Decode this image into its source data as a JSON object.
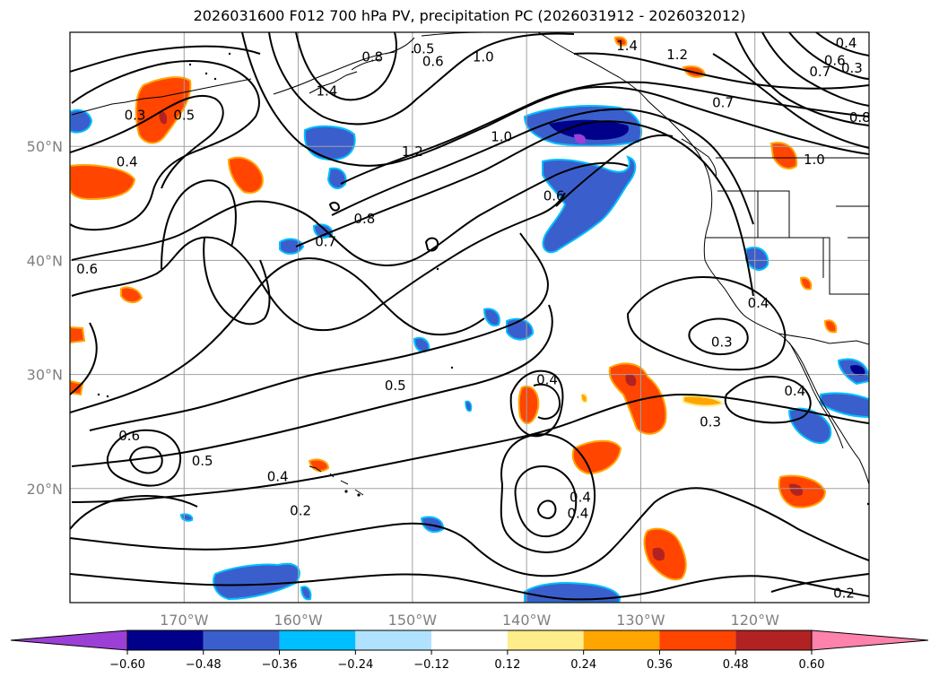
{
  "title": "2026031600 F012 700 hPa PV, precipitation PC (2026031912 - 2026032012)",
  "map": {
    "lon_range": [
      -180,
      -110
    ],
    "lat_range": [
      10,
      60
    ],
    "lat_ticks": [
      {
        "value": 50,
        "label": "50°N"
      },
      {
        "value": 40,
        "label": "40°N"
      },
      {
        "value": 30,
        "label": "30°N"
      },
      {
        "value": 20,
        "label": "20°N"
      }
    ],
    "lon_ticks": [
      {
        "value": -170,
        "label": "170°W"
      },
      {
        "value": -160,
        "label": "160°W"
      },
      {
        "value": -150,
        "label": "150°W"
      },
      {
        "value": -140,
        "label": "140°W"
      },
      {
        "value": -130,
        "label": "130°W"
      },
      {
        "value": -120,
        "label": "120°W"
      }
    ],
    "grid": true,
    "grid_color": "#a0a0a0",
    "contour_color": "#000000",
    "coast_color": "#000000"
  },
  "colorbar": {
    "colors": [
      "#9c3fd6",
      "#00008b",
      "#3a5fcd",
      "#00bfff",
      "#b0e2ff",
      "#ffffff",
      "#ffec8b",
      "#ffa500",
      "#ff4500",
      "#b22222",
      "#ff82ab"
    ],
    "tick_labels": [
      "−0.60",
      "−0.48",
      "−0.36",
      "−0.24",
      "−0.12",
      "0.12",
      "0.24",
      "0.36",
      "0.48",
      "0.60"
    ],
    "extend": "both"
  },
  "contour_labels": [
    {
      "text": "1.4",
      "lon": -157.5,
      "lat": 54.8
    },
    {
      "text": "0.8",
      "lon": -153.5,
      "lat": 57.8
    },
    {
      "text": "0.5",
      "lon": -149.0,
      "lat": 58.5
    },
    {
      "text": "0.6",
      "lon": -148.2,
      "lat": 57.4
    },
    {
      "text": "1.0",
      "lon": -143.8,
      "lat": 57.8
    },
    {
      "text": "1.4",
      "lon": -131.2,
      "lat": 58.8
    },
    {
      "text": "1.2",
      "lon": -126.8,
      "lat": 58.0
    },
    {
      "text": "0.4",
      "lon": -112.0,
      "lat": 59.0
    },
    {
      "text": "0.6",
      "lon": -113.0,
      "lat": 57.5
    },
    {
      "text": "0.3",
      "lon": -111.5,
      "lat": 56.8
    },
    {
      "text": "0.7",
      "lon": -114.3,
      "lat": 56.5
    },
    {
      "text": "0.7",
      "lon": -122.8,
      "lat": 53.8
    },
    {
      "text": "0.8",
      "lon": -110.8,
      "lat": 52.5
    },
    {
      "text": "1.0",
      "lon": -114.8,
      "lat": 48.8
    },
    {
      "text": "1.0",
      "lon": -142.2,
      "lat": 50.8
    },
    {
      "text": "1.2",
      "lon": -150.0,
      "lat": 49.5
    },
    {
      "text": "0.3",
      "lon": -174.3,
      "lat": 52.7
    },
    {
      "text": "0.5",
      "lon": -170.0,
      "lat": 52.7
    },
    {
      "text": "0.4",
      "lon": -175.0,
      "lat": 48.6
    },
    {
      "text": "0.6",
      "lon": -137.6,
      "lat": 45.6
    },
    {
      "text": "0.8",
      "lon": -154.2,
      "lat": 43.6
    },
    {
      "text": "0.7",
      "lon": -157.6,
      "lat": 41.6
    },
    {
      "text": "0.6",
      "lon": -178.5,
      "lat": 39.2
    },
    {
      "text": "0.4",
      "lon": -119.7,
      "lat": 36.2
    },
    {
      "text": "0.3",
      "lon": -122.9,
      "lat": 32.8
    },
    {
      "text": "0.4",
      "lon": -116.5,
      "lat": 28.5
    },
    {
      "text": "0.3",
      "lon": -123.9,
      "lat": 25.8
    },
    {
      "text": "0.5",
      "lon": -151.5,
      "lat": 29.0
    },
    {
      "text": "0.4",
      "lon": -138.2,
      "lat": 29.5
    },
    {
      "text": "0.6",
      "lon": -174.8,
      "lat": 24.6
    },
    {
      "text": "0.5",
      "lon": -168.4,
      "lat": 22.4
    },
    {
      "text": "0.4",
      "lon": -161.8,
      "lat": 21.0
    },
    {
      "text": "0.2",
      "lon": -159.8,
      "lat": 18.0
    },
    {
      "text": "0.4",
      "lon": -135.3,
      "lat": 19.2
    },
    {
      "text": "0.4",
      "lon": -135.5,
      "lat": 17.8
    },
    {
      "text": "0.2",
      "lon": -112.2,
      "lat": 10.8
    }
  ]
}
